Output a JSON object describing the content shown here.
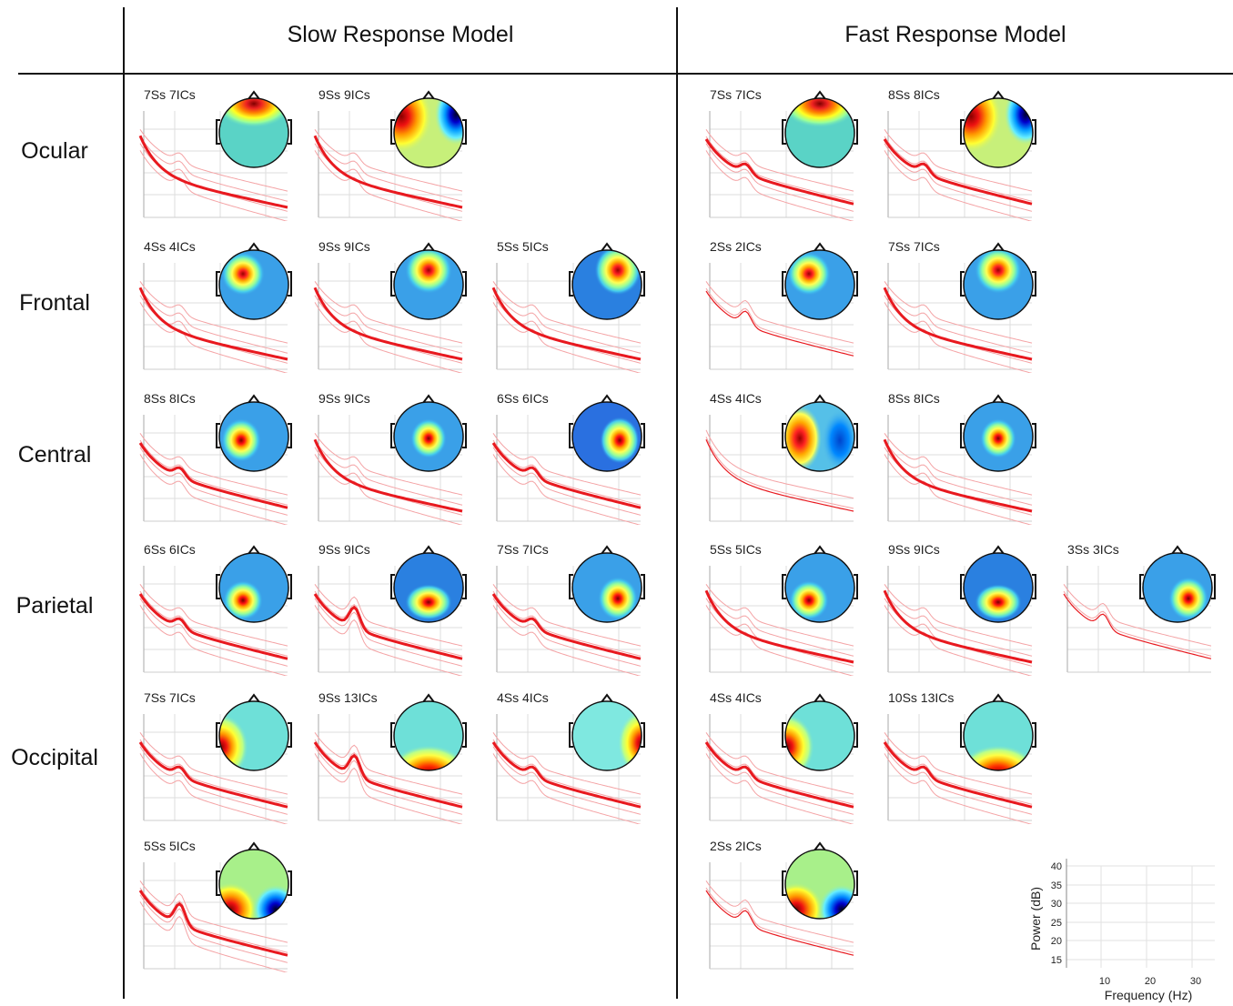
{
  "columns": [
    {
      "id": "slow",
      "title": "Slow Response Model"
    },
    {
      "id": "fast",
      "title": "Fast Response Model"
    }
  ],
  "rows": [
    "Ocular",
    "Frontal",
    "Central",
    "Parietal",
    "Occipital",
    ""
  ],
  "cells": [
    {
      "col": "slow",
      "row": 0,
      "idx": 0,
      "label": "7Ss 7ICs",
      "topo": "ocular-frontal-band",
      "spectrum": "decay-smooth"
    },
    {
      "col": "slow",
      "row": 0,
      "idx": 1,
      "label": "9Ss 9ICs",
      "topo": "lateral-red-left-blue-right",
      "spectrum": "decay-smooth"
    },
    {
      "col": "slow",
      "row": 1,
      "idx": 0,
      "label": "4Ss 4ICs",
      "topo": "frontal-left",
      "spectrum": "decay-smooth"
    },
    {
      "col": "slow",
      "row": 1,
      "idx": 1,
      "label": "9Ss 9ICs",
      "topo": "frontal-mid",
      "spectrum": "decay-smooth"
    },
    {
      "col": "slow",
      "row": 1,
      "idx": 2,
      "label": "5Ss 5ICs",
      "topo": "frontal-right",
      "spectrum": "decay-smooth"
    },
    {
      "col": "slow",
      "row": 2,
      "idx": 0,
      "label": "8Ss 8ICs",
      "topo": "central-left",
      "spectrum": "alpha-small"
    },
    {
      "col": "slow",
      "row": 2,
      "idx": 1,
      "label": "9Ss 9ICs",
      "topo": "central-mid",
      "spectrum": "decay-smooth"
    },
    {
      "col": "slow",
      "row": 2,
      "idx": 2,
      "label": "6Ss 6ICs",
      "topo": "central-right",
      "spectrum": "alpha-small"
    },
    {
      "col": "slow",
      "row": 3,
      "idx": 0,
      "label": "6Ss 6ICs",
      "topo": "parietal-left",
      "spectrum": "alpha-small"
    },
    {
      "col": "slow",
      "row": 3,
      "idx": 1,
      "label": "9Ss 9ICs",
      "topo": "parietal-mid",
      "spectrum": "alpha-big"
    },
    {
      "col": "slow",
      "row": 3,
      "idx": 2,
      "label": "7Ss 7ICs",
      "topo": "parietal-right",
      "spectrum": "alpha-small"
    },
    {
      "col": "slow",
      "row": 4,
      "idx": 0,
      "label": "7Ss 7ICs",
      "topo": "occipital-left-edge",
      "spectrum": "alpha-small"
    },
    {
      "col": "slow",
      "row": 4,
      "idx": 1,
      "label": "9Ss 13ICs",
      "topo": "occipital-posterior-band",
      "spectrum": "alpha-big"
    },
    {
      "col": "slow",
      "row": 4,
      "idx": 2,
      "label": "4Ss 4ICs",
      "topo": "occipital-right-edge",
      "spectrum": "alpha-small"
    },
    {
      "col": "slow",
      "row": 5,
      "idx": 0,
      "label": "5Ss 5ICs",
      "topo": "posterior-red-left-blue-right",
      "spectrum": "alpha-big"
    },
    {
      "col": "fast",
      "row": 0,
      "idx": 0,
      "label": "7Ss 7ICs",
      "topo": "ocular-frontal-band",
      "spectrum": "alpha-small"
    },
    {
      "col": "fast",
      "row": 0,
      "idx": 1,
      "label": "8Ss 8ICs",
      "topo": "lateral-red-left-blue-right",
      "spectrum": "alpha-small"
    },
    {
      "col": "fast",
      "row": 1,
      "idx": 0,
      "label": "2Ss 2ICs",
      "topo": "frontal-left",
      "spectrum": "alpha-thin"
    },
    {
      "col": "fast",
      "row": 1,
      "idx": 1,
      "label": "7Ss 7ICs",
      "topo": "frontal-mid",
      "spectrum": "decay-smooth"
    },
    {
      "col": "fast",
      "row": 2,
      "idx": 0,
      "label": "4Ss 4ICs",
      "topo": "central-left-dipole",
      "spectrum": "decay-thin"
    },
    {
      "col": "fast",
      "row": 2,
      "idx": 1,
      "label": "8Ss 8ICs",
      "topo": "central-mid",
      "spectrum": "decay-smooth"
    },
    {
      "col": "fast",
      "row": 3,
      "idx": 0,
      "label": "5Ss 5ICs",
      "topo": "parietal-left",
      "spectrum": "decay-smooth"
    },
    {
      "col": "fast",
      "row": 3,
      "idx": 1,
      "label": "9Ss 9ICs",
      "topo": "parietal-mid",
      "spectrum": "decay-smooth"
    },
    {
      "col": "fast",
      "row": 3,
      "idx": 2,
      "label": "3Ss 3ICs",
      "topo": "parietal-right",
      "spectrum": "alpha-thin"
    },
    {
      "col": "fast",
      "row": 4,
      "idx": 0,
      "label": "4Ss 4ICs",
      "topo": "occipital-left-edge",
      "spectrum": "alpha-small"
    },
    {
      "col": "fast",
      "row": 4,
      "idx": 1,
      "label": "10Ss 13ICs",
      "topo": "occipital-posterior-band",
      "spectrum": "alpha-small"
    },
    {
      "col": "fast",
      "row": 5,
      "idx": 0,
      "label": "2Ss 2ICs",
      "topo": "posterior-red-left-blue-right",
      "spectrum": "alpha-thin"
    }
  ],
  "axis_reference": {
    "xlabel": "Frequency (Hz)",
    "ylabel": "Power (dB)",
    "xticks": [
      "10",
      "20",
      "30"
    ],
    "yticks": [
      "40",
      "35",
      "30",
      "25",
      "20",
      "15"
    ]
  },
  "colors": {
    "trace": "#e8191f",
    "trace_light": "#f4a3a5",
    "grid": "#dddddd"
  }
}
